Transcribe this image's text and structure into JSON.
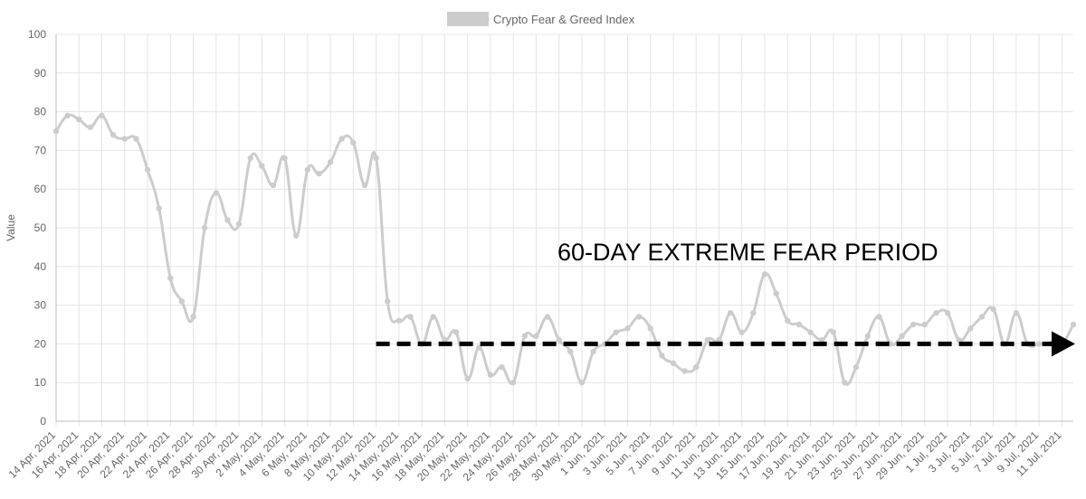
{
  "chart_data": {
    "type": "line",
    "legend": {
      "label": "Crypto Fear & Greed Index",
      "position": "top-center"
    },
    "ylabel": "Value",
    "ylim": [
      0,
      100
    ],
    "yticks": [
      "0",
      "10",
      "20",
      "30",
      "40",
      "50",
      "60",
      "70",
      "80",
      "90",
      "100"
    ],
    "grid": true,
    "color": "#cccccc",
    "x": [
      "14 Apr, 2021",
      "15 Apr, 2021",
      "16 Apr, 2021",
      "17 Apr, 2021",
      "18 Apr, 2021",
      "19 Apr, 2021",
      "20 Apr, 2021",
      "21 Apr, 2021",
      "22 Apr, 2021",
      "23 Apr, 2021",
      "24 Apr, 2021",
      "25 Apr, 2021",
      "26 Apr, 2021",
      "27 Apr, 2021",
      "28 Apr, 2021",
      "29 Apr, 2021",
      "30 Apr, 2021",
      "1 May, 2021",
      "2 May, 2021",
      "3 May, 2021",
      "4 May, 2021",
      "5 May, 2021",
      "6 May, 2021",
      "7 May, 2021",
      "8 May, 2021",
      "9 May, 2021",
      "10 May, 2021",
      "11 May, 2021",
      "12 May, 2021",
      "13 May, 2021",
      "14 May, 2021",
      "15 May, 2021",
      "16 May, 2021",
      "17 May, 2021",
      "18 May, 2021",
      "19 May, 2021",
      "20 May, 2021",
      "21 May, 2021",
      "22 May, 2021",
      "23 May, 2021",
      "24 May, 2021",
      "25 May, 2021",
      "26 May, 2021",
      "27 May, 2021",
      "28 May, 2021",
      "29 May, 2021",
      "30 May, 2021",
      "31 May, 2021",
      "1 Jun, 2021",
      "2 Jun, 2021",
      "3 Jun, 2021",
      "4 Jun, 2021",
      "5 Jun, 2021",
      "6 Jun, 2021",
      "7 Jun, 2021",
      "8 Jun, 2021",
      "9 Jun, 2021",
      "10 Jun, 2021",
      "11 Jun, 2021",
      "12 Jun, 2021",
      "13 Jun, 2021",
      "14 Jun, 2021",
      "15 Jun, 2021",
      "16 Jun, 2021",
      "17 Jun, 2021",
      "18 Jun, 2021",
      "19 Jun, 2021",
      "20 Jun, 2021",
      "21 Jun, 2021",
      "22 Jun, 2021",
      "23 Jun, 2021",
      "24 Jun, 2021",
      "25 Jun, 2021",
      "26 Jun, 2021",
      "27 Jun, 2021",
      "28 Jun, 2021",
      "29 Jun, 2021",
      "30 Jun, 2021",
      "1 Jul, 2021",
      "2 Jul, 2021",
      "3 Jul, 2021",
      "4 Jul, 2021",
      "5 Jul, 2021",
      "6 Jul, 2021",
      "7 Jul, 2021",
      "8 Jul, 2021",
      "9 Jul, 2021",
      "10 Jul, 2021",
      "11 Jul, 2021",
      "12 Jul, 2021"
    ],
    "x_tick_labels_every": 2,
    "values": [
      75,
      79,
      78,
      76,
      79,
      74,
      73,
      73,
      65,
      55,
      37,
      31,
      27,
      50,
      59,
      52,
      51,
      68,
      66,
      61,
      68,
      48,
      65,
      64,
      67,
      73,
      72,
      61,
      68,
      31,
      26,
      27,
      20,
      27,
      21,
      23,
      11,
      19,
      12,
      14,
      10,
      22,
      22,
      27,
      21,
      18,
      10,
      18,
      20,
      23,
      24,
      27,
      24,
      17,
      15,
      13,
      14,
      21,
      21,
      28,
      23,
      28,
      38,
      33,
      26,
      25,
      23,
      21,
      23,
      10,
      14,
      22,
      27,
      20,
      22,
      25,
      25,
      28,
      28,
      21,
      24,
      27,
      29,
      20,
      28,
      20,
      20,
      20,
      20,
      25
    ],
    "annotations": [
      {
        "type": "text",
        "text": "60-DAY EXTREME FEAR PERIOD"
      },
      {
        "type": "dashed-arrow",
        "from_x": "12 May, 2021",
        "to_x": "12 Jul, 2021",
        "y": 20,
        "color": "#000000"
      }
    ]
  }
}
